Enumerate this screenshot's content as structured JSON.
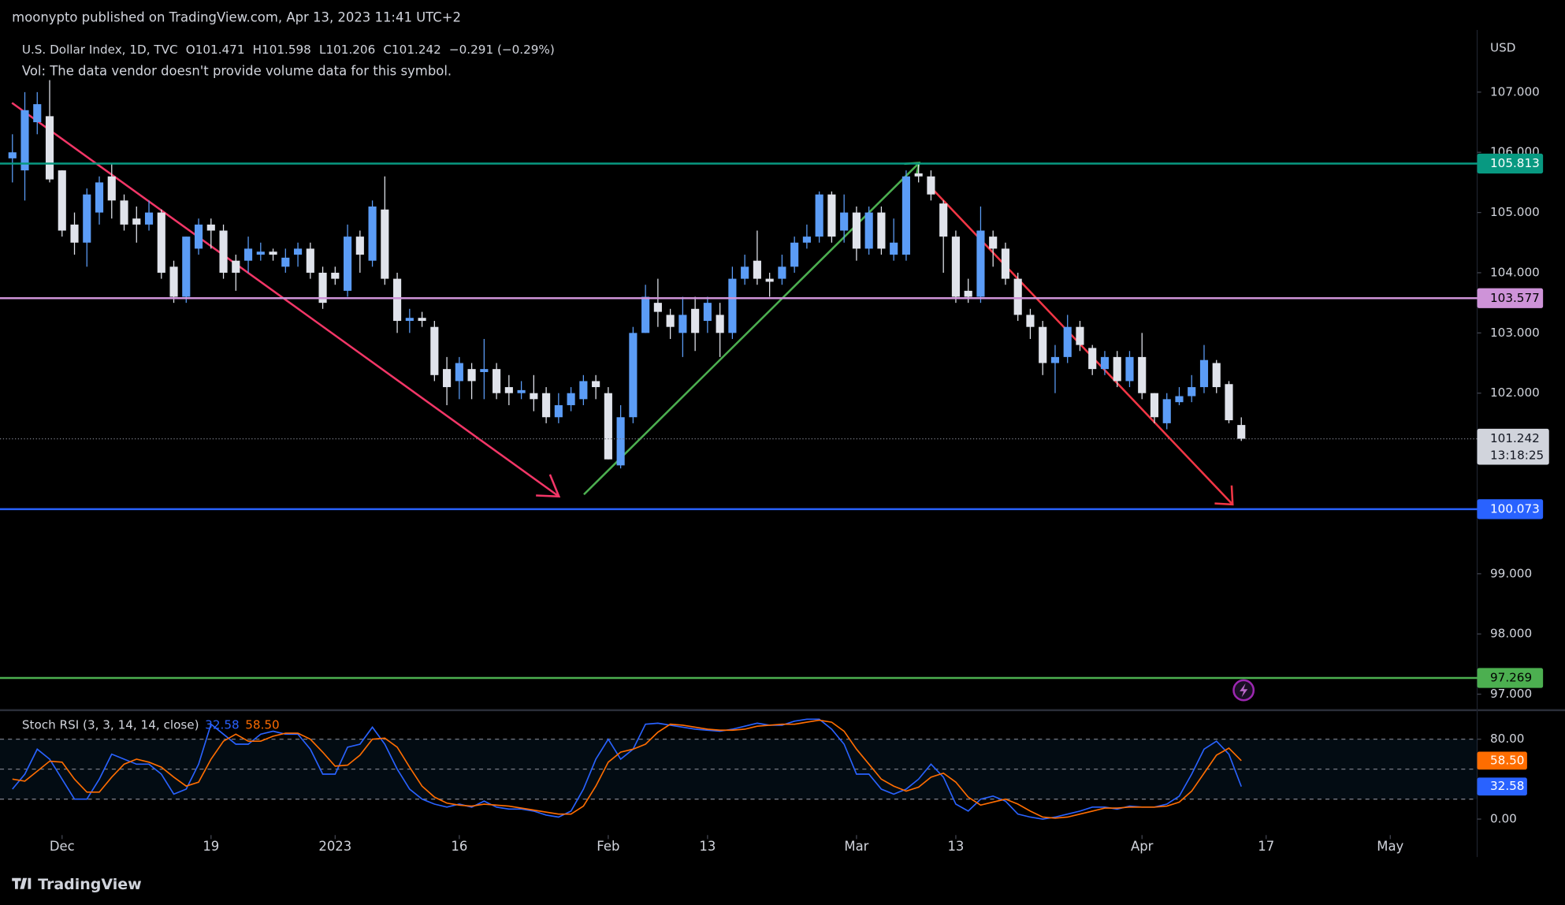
{
  "header": {
    "published": "moonypto published on TradingView.com, Apr 13, 2023 11:41 UTC+2",
    "vol_note": "Vol: The data vendor doesn't provide volume data for this symbol."
  },
  "chart_data": [
    {
      "type": "candlestick",
      "symbol": "U.S. Dollar Index, 1D, TVC",
      "ohlc_legend": [
        {
          "key": "O",
          "value": 101.471
        },
        {
          "key": "H",
          "value": 101.598
        },
        {
          "key": "L",
          "value": 101.206
        },
        {
          "key": "C",
          "value": 101.242
        }
      ],
      "change": "−0.291 (−0.29%)",
      "currency": "USD",
      "up_color": "#5b9cf6",
      "down_color": "#e0e3eb",
      "x": [
        0,
        1,
        2,
        3,
        4,
        5,
        6,
        7,
        8,
        9,
        10,
        11,
        12,
        13,
        14,
        15,
        16,
        17,
        18,
        19,
        20,
        21,
        22,
        23,
        24,
        25,
        26,
        27,
        28,
        29,
        30,
        31,
        32,
        33,
        34,
        35,
        36,
        37,
        38,
        39,
        40,
        41,
        42,
        43,
        44,
        45,
        46,
        47,
        48,
        49,
        50,
        51,
        52,
        53,
        54,
        55,
        56,
        57,
        58,
        59,
        60,
        61,
        62,
        63,
        64,
        65,
        66,
        67,
        68,
        69,
        70,
        71,
        72,
        73,
        74,
        75,
        76,
        77,
        78,
        79,
        80,
        81,
        82,
        83,
        84,
        85,
        86,
        87,
        88,
        89,
        90,
        91,
        92,
        93,
        94,
        95,
        96,
        97,
        98,
        99
      ],
      "open": [
        105.9,
        105.7,
        106.5,
        106.6,
        105.7,
        104.8,
        104.5,
        105.0,
        105.6,
        105.2,
        104.9,
        104.8,
        105.0,
        104.1,
        103.6,
        104.4,
        104.8,
        104.7,
        104.2,
        104.2,
        104.3,
        104.35,
        104.1,
        104.3,
        104.4,
        104.0,
        104.0,
        103.7,
        104.6,
        104.2,
        105.05,
        103.9,
        103.2,
        103.25,
        103.1,
        102.4,
        102.2,
        102.4,
        102.35,
        102.4,
        102.1,
        102.0,
        102.0,
        102.0,
        101.6,
        101.8,
        101.9,
        102.2,
        102.0,
        100.8,
        101.6,
        103.0,
        103.5,
        103.3,
        103.0,
        103.4,
        103.2,
        103.3,
        103.0,
        103.9,
        104.2,
        103.9,
        103.9,
        104.1,
        104.5,
        104.6,
        105.3,
        104.7,
        105.0,
        104.4,
        105.0,
        104.3,
        104.3,
        105.65,
        105.6,
        105.15,
        104.6,
        103.7,
        103.6,
        104.6,
        104.4,
        103.9,
        103.3,
        103.1,
        102.5,
        102.6,
        103.1,
        102.75,
        102.4,
        102.6,
        102.2,
        102.6,
        102.0,
        101.5,
        101.85,
        101.95,
        102.1,
        102.5,
        102.15,
        101.471
      ],
      "high": [
        106.3,
        107.0,
        107.0,
        107.2,
        105.7,
        105.0,
        105.4,
        105.6,
        105.8,
        105.3,
        105.1,
        105.2,
        105.05,
        104.2,
        104.6,
        104.9,
        104.9,
        104.8,
        104.3,
        104.6,
        104.5,
        104.4,
        104.4,
        104.5,
        104.5,
        104.1,
        104.1,
        104.8,
        104.7,
        105.2,
        105.6,
        104.0,
        103.4,
        103.35,
        103.2,
        102.6,
        102.6,
        102.5,
        102.9,
        102.5,
        102.3,
        102.2,
        102.3,
        102.1,
        102.0,
        102.1,
        102.3,
        102.3,
        102.1,
        101.8,
        103.1,
        103.8,
        103.9,
        103.4,
        103.6,
        103.6,
        103.6,
        103.5,
        104.1,
        104.3,
        104.7,
        104.0,
        104.3,
        104.6,
        104.8,
        105.35,
        105.35,
        105.3,
        105.1,
        105.1,
        105.1,
        104.9,
        105.7,
        105.8,
        105.7,
        105.2,
        104.7,
        103.9,
        105.1,
        104.7,
        104.5,
        104.0,
        103.4,
        103.2,
        102.8,
        103.3,
        103.2,
        102.8,
        102.7,
        102.7,
        102.7,
        103.0,
        102.0,
        102.0,
        102.1,
        102.3,
        102.8,
        102.55,
        102.2,
        101.598
      ],
      "low": [
        105.5,
        105.2,
        106.3,
        105.5,
        104.6,
        104.3,
        104.1,
        104.8,
        104.9,
        104.7,
        104.5,
        104.7,
        103.9,
        103.5,
        103.5,
        104.3,
        104.4,
        103.9,
        103.7,
        104.0,
        104.2,
        104.2,
        104.0,
        104.1,
        103.9,
        103.4,
        103.8,
        103.6,
        104.0,
        104.1,
        103.8,
        103.0,
        103.0,
        103.1,
        102.2,
        101.8,
        101.9,
        101.9,
        101.9,
        101.9,
        101.8,
        101.9,
        101.7,
        101.5,
        101.5,
        101.7,
        101.8,
        101.9,
        100.9,
        100.75,
        101.5,
        103.0,
        103.1,
        102.9,
        102.6,
        102.7,
        103.0,
        102.6,
        102.9,
        103.8,
        103.8,
        103.6,
        103.8,
        104.0,
        104.4,
        104.5,
        104.5,
        104.5,
        104.2,
        104.3,
        104.3,
        104.2,
        104.2,
        105.5,
        105.2,
        104.0,
        103.5,
        103.5,
        103.5,
        104.1,
        103.8,
        103.2,
        102.9,
        102.3,
        102.0,
        102.5,
        102.7,
        102.3,
        102.3,
        102.1,
        102.1,
        101.9,
        101.5,
        101.4,
        101.8,
        101.85,
        102.0,
        102.0,
        101.5,
        101.206
      ],
      "close": [
        106.0,
        106.7,
        106.8,
        105.55,
        104.7,
        104.5,
        105.3,
        105.5,
        105.2,
        104.8,
        104.8,
        105.0,
        104.0,
        103.6,
        104.6,
        104.8,
        104.7,
        104.0,
        104.0,
        104.4,
        104.35,
        104.3,
        104.25,
        104.4,
        104.0,
        103.5,
        103.9,
        104.6,
        104.3,
        105.1,
        103.9,
        103.2,
        103.25,
        103.2,
        102.3,
        102.1,
        102.5,
        102.2,
        102.4,
        102.0,
        102.0,
        102.05,
        101.9,
        101.6,
        101.8,
        102.0,
        102.2,
        102.1,
        100.9,
        101.6,
        103.0,
        103.6,
        103.35,
        103.1,
        103.3,
        103.0,
        103.5,
        103.0,
        103.9,
        104.1,
        103.9,
        103.85,
        104.1,
        104.5,
        104.6,
        105.3,
        104.6,
        105.0,
        104.4,
        105.0,
        104.4,
        104.5,
        105.6,
        105.6,
        105.3,
        104.6,
        103.6,
        103.6,
        104.7,
        104.4,
        103.9,
        103.3,
        103.1,
        102.5,
        102.6,
        103.1,
        102.8,
        102.4,
        102.6,
        102.2,
        102.6,
        102.0,
        101.6,
        101.9,
        101.95,
        102.1,
        102.55,
        102.1,
        101.55,
        101.242
      ],
      "xlim": [
        -1,
        118
      ],
      "xticks": [
        {
          "value": 4,
          "label": "Dec"
        },
        {
          "value": 16,
          "label": "19"
        },
        {
          "value": 26,
          "label": "2023"
        },
        {
          "value": 36,
          "label": "16"
        },
        {
          "value": 48,
          "label": "Feb"
        },
        {
          "value": 56,
          "label": "13"
        },
        {
          "value": 68,
          "label": "Mar"
        },
        {
          "value": 76,
          "label": "13"
        },
        {
          "value": 91,
          "label": "Apr"
        },
        {
          "value": 101,
          "label": "17"
        },
        {
          "value": 111,
          "label": "May"
        }
      ],
      "ylim": [
        96.75,
        108.53
      ],
      "yticks": [
        {
          "value": 97,
          "label": "97.000"
        },
        {
          "value": 98,
          "label": "98.000"
        },
        {
          "value": 99,
          "label": "99.000"
        },
        {
          "value": 102,
          "label": "102.000"
        },
        {
          "value": 103,
          "label": "103.000"
        },
        {
          "value": 104,
          "label": "104.000"
        },
        {
          "value": 105,
          "label": "105.000"
        },
        {
          "value": 106,
          "label": "106.000"
        },
        {
          "value": 107,
          "label": "107.000"
        }
      ],
      "levels": [
        {
          "value": 105.813,
          "color": "#089981",
          "label_color": "#ffffff"
        },
        {
          "value": 103.577,
          "color": "#ce93d8",
          "label_color": "#000000"
        },
        {
          "value": 100.073,
          "color": "#2962ff",
          "label_color": "#ffffff"
        },
        {
          "value": 97.269,
          "color": "#4caf50",
          "label_color": "#000000"
        }
      ],
      "last_price": 101.242,
      "countdown": "13:18:25"
    },
    {
      "type": "line",
      "title": "Stoch RSI (3, 3, 14, 14, close)",
      "x": [
        0,
        1,
        2,
        3,
        4,
        5,
        6,
        7,
        8,
        9,
        10,
        11,
        12,
        13,
        14,
        15,
        16,
        17,
        18,
        19,
        20,
        21,
        22,
        23,
        24,
        25,
        26,
        27,
        28,
        29,
        30,
        31,
        32,
        33,
        34,
        35,
        36,
        37,
        38,
        39,
        40,
        41,
        42,
        43,
        44,
        45,
        46,
        47,
        48,
        49,
        50,
        51,
        52,
        53,
        54,
        55,
        56,
        57,
        58,
        59,
        60,
        61,
        62,
        63,
        64,
        65,
        66,
        67,
        68,
        69,
        70,
        71,
        72,
        73,
        74,
        75,
        76,
        77,
        78,
        79,
        80,
        81,
        82,
        83,
        84,
        85,
        86,
        87,
        88,
        89,
        90,
        91,
        92,
        93,
        94,
        95,
        96,
        97,
        98,
        99
      ],
      "xlim": [
        -1,
        118
      ],
      "series": [
        {
          "color": "#2962ff",
          "last_label": "32.58",
          "values": [
            30,
            45,
            70,
            60,
            40,
            20,
            20,
            40,
            65,
            60,
            55,
            55,
            45,
            25,
            30,
            55,
            95,
            85,
            75,
            75,
            85,
            88,
            85,
            85,
            70,
            45,
            45,
            72,
            75,
            92,
            75,
            50,
            30,
            20,
            15,
            12,
            15,
            12,
            18,
            12,
            10,
            10,
            8,
            4,
            2,
            8,
            30,
            60,
            80,
            60,
            70,
            95,
            96,
            94,
            92,
            90,
            89,
            88,
            90,
            93,
            96,
            94,
            94,
            98,
            100,
            100,
            90,
            75,
            45,
            45,
            30,
            25,
            30,
            40,
            55,
            42,
            15,
            8,
            20,
            23,
            18,
            5,
            2,
            0,
            2,
            5,
            8,
            12,
            12,
            10,
            13,
            12,
            12,
            15,
            23,
            45,
            70,
            78,
            65,
            32.58
          ]
        },
        {
          "color": "#ff6d00",
          "last_label": "58.50",
          "values": [
            40,
            38,
            48,
            58,
            57,
            40,
            27,
            27,
            42,
            55,
            60,
            57,
            52,
            42,
            33,
            37,
            60,
            78,
            85,
            78,
            78,
            83,
            86,
            86,
            80,
            67,
            53,
            54,
            64,
            80,
            81,
            72,
            52,
            33,
            22,
            16,
            14,
            13,
            15,
            14,
            13,
            11,
            9,
            7,
            5,
            5,
            13,
            33,
            57,
            67,
            70,
            75,
            87,
            95,
            94,
            92,
            90,
            89,
            89,
            90,
            93,
            94,
            95,
            95,
            97,
            99,
            97,
            88,
            70,
            55,
            40,
            33,
            28,
            32,
            42,
            46,
            37,
            22,
            14,
            17,
            20,
            15,
            8,
            2,
            1,
            2,
            5,
            8,
            11,
            11,
            12,
            12,
            12,
            13,
            17,
            28,
            46,
            64,
            71,
            58.5
          ]
        }
      ],
      "ylim": [
        -12,
        108
      ],
      "yticks": [
        {
          "value": 0,
          "label": "0.00"
        },
        {
          "value": 80,
          "label": "80.00"
        }
      ],
      "bands": [
        20,
        50,
        80
      ]
    }
  ],
  "footer": {
    "brand": "TradingView"
  }
}
